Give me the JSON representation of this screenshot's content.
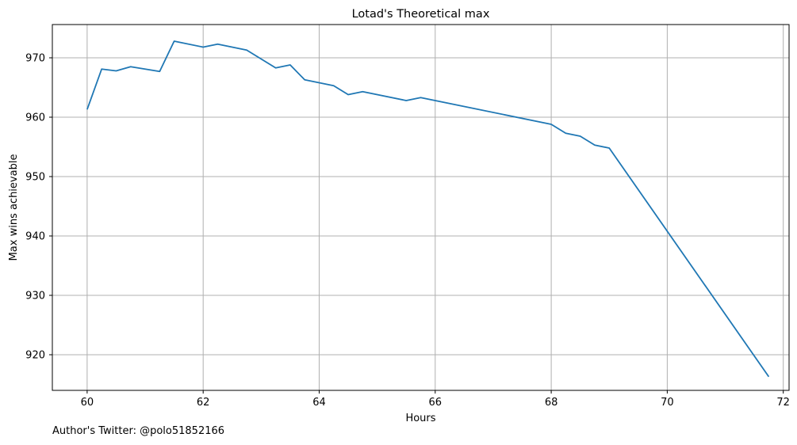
{
  "chart_data": {
    "type": "line",
    "title": "Lotad's Theoretical max",
    "xlabel": "Hours",
    "ylabel": "Max wins achievable",
    "xlim": [
      59.4,
      72.1
    ],
    "ylim": [
      914.0,
      975.6
    ],
    "xticks": [
      60,
      62,
      64,
      66,
      68,
      70,
      72
    ],
    "yticks": [
      920,
      930,
      940,
      950,
      960,
      970
    ],
    "grid": true,
    "line_color": "#1f77b4",
    "series": [
      {
        "x": [
          60.0,
          60.25,
          60.5,
          60.75,
          61.25,
          61.5,
          62.0,
          62.25,
          62.75,
          63.25,
          63.5,
          63.75,
          64.25,
          64.5,
          64.75,
          65.5,
          65.75,
          68.0,
          68.25,
          68.5,
          68.75,
          69.0,
          71.75
        ],
        "y": [
          961.3,
          968.1,
          967.8,
          968.5,
          967.7,
          972.8,
          971.8,
          972.3,
          971.3,
          968.3,
          968.8,
          966.3,
          965.3,
          963.8,
          964.3,
          962.8,
          963.3,
          958.8,
          957.3,
          956.8,
          955.3,
          954.8,
          916.3
        ]
      }
    ]
  },
  "footer": {
    "text": "Author's Twitter: @polo51852166"
  }
}
